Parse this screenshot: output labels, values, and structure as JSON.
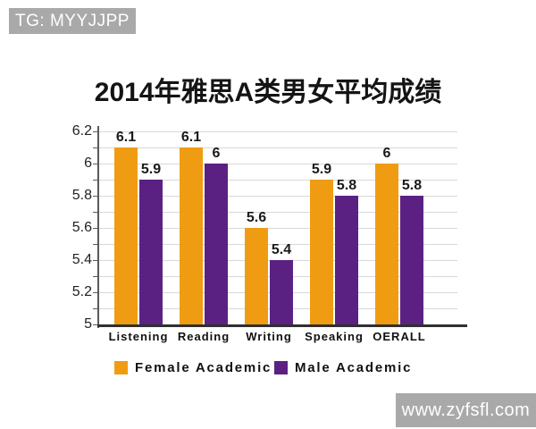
{
  "watermarks": {
    "top": {
      "text": "TG: MYYJJPP",
      "bg": "#a9a9a9",
      "fg": "#ffffff"
    },
    "bottom": {
      "text": "www.zyfsfl.com",
      "bg": "#a9a9a9",
      "fg": "#ffffff"
    }
  },
  "chart_data": {
    "type": "bar",
    "title": "2014年雅思A类男女平均成绩",
    "categories": [
      "Listening",
      "Reading",
      "Writing",
      "Speaking",
      "OERALL"
    ],
    "series": [
      {
        "name": "Female Academic",
        "color": "#F09C13",
        "values": [
          6.1,
          6.1,
          5.6,
          5.9,
          6
        ]
      },
      {
        "name": "Male Academic",
        "color": "#5B2182",
        "values": [
          5.9,
          6,
          5.4,
          5.8,
          5.8
        ]
      }
    ],
    "ylim": [
      5,
      6.2
    ],
    "yticks": [
      6.2,
      6,
      5.8,
      5.6,
      5.4,
      5.2,
      5
    ],
    "minor_grid_step": 0.1,
    "grid": true,
    "legend_position": "bottom",
    "xlabel": "",
    "ylabel": ""
  }
}
